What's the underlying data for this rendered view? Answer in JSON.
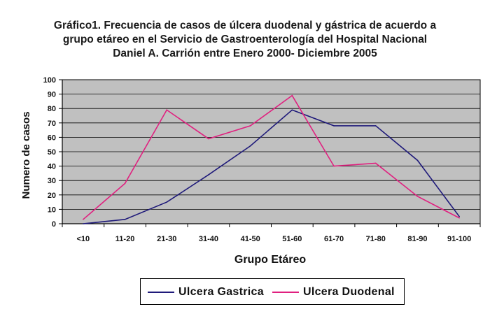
{
  "title_lines": [
    "Gráfico1. Frecuencia de casos de úlcera duodenal y gástrica de acuerdo a",
    "grupo etáreo en el Servicio de Gastroenterología del Hospital Nacional",
    "Daniel A. Carrión entre Enero 2000- Diciembre 2005"
  ],
  "chart_data": {
    "type": "line",
    "title": "Gráfico1. Frecuencia de casos de úlcera duodenal y gástrica de acuerdo a grupo etáreo en el Servicio de Gastroenterología del Hospital Nacional Daniel A. Carrión entre Enero 2000- Diciembre 2005",
    "xlabel": "Grupo Etáreo",
    "ylabel": "Numero de casos",
    "categories": [
      "<10",
      "11-20",
      "21-30",
      "31-40",
      "41-50",
      "51-60",
      "61-70",
      "71-80",
      "81-90",
      "91-100"
    ],
    "ylim": [
      0,
      100
    ],
    "yticks": [
      0,
      10,
      20,
      30,
      40,
      50,
      60,
      70,
      80,
      90,
      100
    ],
    "grid": true,
    "legend_position": "bottom",
    "plot_background": "#c0c0c0",
    "series": [
      {
        "name": "Ulcera Gastrica",
        "color": "#1f1a7a",
        "values": [
          0,
          3,
          15,
          34,
          54,
          79,
          68,
          68,
          44,
          5
        ]
      },
      {
        "name": "Ulcera Duodenal",
        "color": "#e0207f",
        "values": [
          3,
          28,
          79,
          59,
          68,
          89,
          40,
          42,
          19,
          4
        ]
      }
    ]
  }
}
